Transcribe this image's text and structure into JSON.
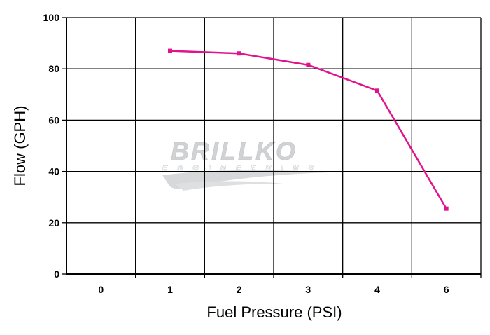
{
  "chart_data": {
    "type": "line",
    "xlabel": "Fuel Pressure (PSI)",
    "ylabel": "Flow (GPH)",
    "categories": [
      "0",
      "1",
      "2",
      "3",
      "4",
      "6"
    ],
    "ylim": [
      0,
      100
    ],
    "yticks": [
      "0",
      "20",
      "40",
      "60",
      "80",
      "100"
    ],
    "grid": true,
    "series": [
      {
        "values": [
          null,
          87,
          86,
          81.5,
          71.5,
          25.5
        ],
        "color": "#e0138c"
      }
    ]
  },
  "watermark": {
    "brand": "BRILLKO",
    "sub": "ENGINEERING"
  }
}
